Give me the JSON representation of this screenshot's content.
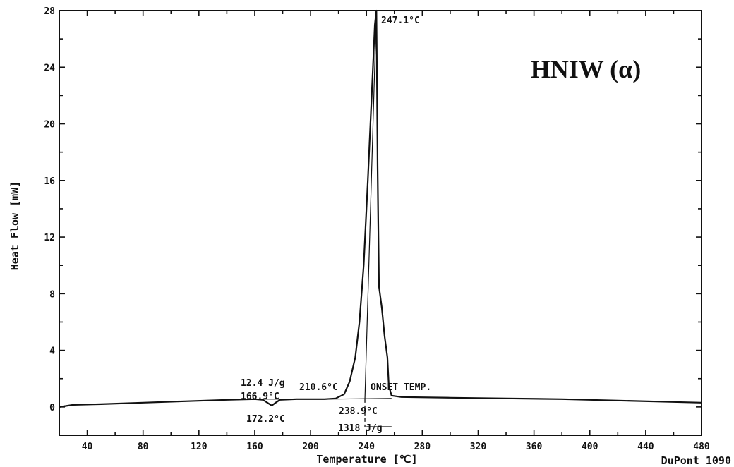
{
  "chart_data": {
    "type": "line",
    "title": "HNIW (α)",
    "xlabel": "Temperature [℃]",
    "ylabel": "Heat Flow [mW]",
    "instrument": "DuPont 1090",
    "xlim": [
      20,
      480
    ],
    "ylim": [
      -2,
      28
    ],
    "x_ticks": [
      40,
      80,
      120,
      160,
      200,
      240,
      280,
      320,
      360,
      400,
      440,
      480
    ],
    "y_ticks": [
      0,
      4,
      8,
      12,
      16,
      20,
      24,
      28
    ],
    "grid": false,
    "series": [
      {
        "points": [
          [
            20,
            0.0
          ],
          [
            30,
            0.15
          ],
          [
            50,
            0.2
          ],
          [
            80,
            0.3
          ],
          [
            110,
            0.4
          ],
          [
            140,
            0.5
          ],
          [
            160,
            0.55
          ],
          [
            166,
            0.5
          ],
          [
            169,
            0.3
          ],
          [
            172.2,
            0.1
          ],
          [
            175,
            0.3
          ],
          [
            178,
            0.5
          ],
          [
            190,
            0.55
          ],
          [
            210,
            0.55
          ],
          [
            218,
            0.6
          ],
          [
            224,
            0.9
          ],
          [
            228,
            1.8
          ],
          [
            232,
            3.5
          ],
          [
            235,
            6.0
          ],
          [
            238,
            10.0
          ],
          [
            241,
            16.0
          ],
          [
            244,
            22.5
          ],
          [
            246,
            27.0
          ],
          [
            247.1,
            28.0
          ],
          [
            247.6,
            22.0
          ],
          [
            248,
            17.0
          ],
          [
            249,
            8.5
          ],
          [
            251,
            7.0
          ],
          [
            253,
            5.0
          ],
          [
            255,
            3.5
          ],
          [
            256,
            1.5
          ],
          [
            258,
            0.8
          ],
          [
            265,
            0.7
          ],
          [
            300,
            0.65
          ],
          [
            340,
            0.6
          ],
          [
            380,
            0.55
          ],
          [
            420,
            0.45
          ],
          [
            460,
            0.35
          ],
          [
            480,
            0.3
          ]
        ]
      }
    ],
    "annotations": {
      "peak_temp": "247.1°C",
      "minor_enthalpy": "12.4 J/g",
      "minor_onset": "166.9°C",
      "minor_peak": "172.2°C",
      "main_start": "210.6°C",
      "onset_label": "ONSET TEMP.",
      "main_onset": "238.9°C",
      "main_enthalpy": "1318 J/g"
    }
  }
}
